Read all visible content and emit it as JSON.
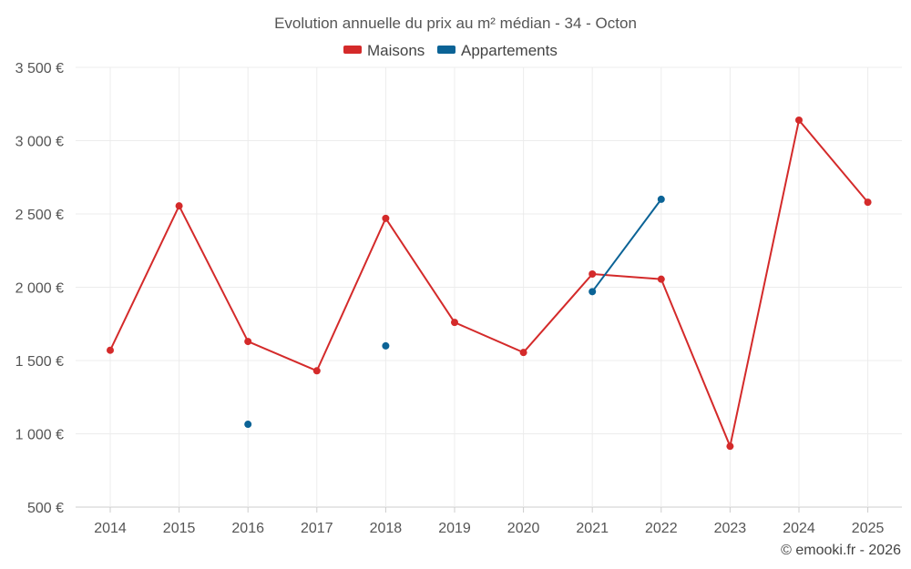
{
  "chart_data": {
    "type": "line",
    "title": "Evolution annuelle du prix au m² médian - 34 - Octon",
    "categories": [
      "2014",
      "2015",
      "2016",
      "2017",
      "2018",
      "2019",
      "2020",
      "2021",
      "2022",
      "2023",
      "2024",
      "2025"
    ],
    "series": [
      {
        "name": "Maisons",
        "color": "#d42a2a",
        "values": [
          1570,
          2555,
          1630,
          1430,
          2470,
          1760,
          1555,
          2090,
          2055,
          915,
          3140,
          2580
        ]
      },
      {
        "name": "Appartements",
        "color": "#0b6396",
        "values": [
          null,
          null,
          1065,
          null,
          1600,
          null,
          null,
          1970,
          2600,
          null,
          null,
          null
        ]
      }
    ],
    "ylim": [
      500,
      3500
    ],
    "yticks": [
      500,
      1000,
      1500,
      2000,
      2500,
      3000,
      3500
    ],
    "ytick_labels": [
      "500 €",
      "1 000 €",
      "1 500 €",
      "2 000 €",
      "2 500 €",
      "3 000 €",
      "3 500 €"
    ],
    "xlabel": "",
    "ylabel": "",
    "grid": true,
    "legend_position": "top-center"
  },
  "credit": "© emooki.fr - 2026"
}
